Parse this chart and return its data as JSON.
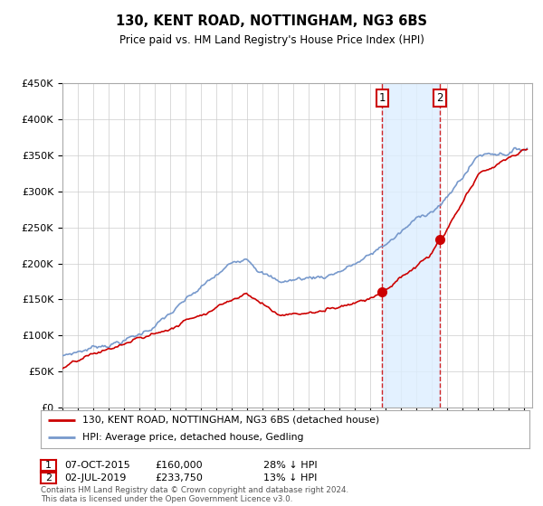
{
  "title": "130, KENT ROAD, NOTTINGHAM, NG3 6BS",
  "subtitle": "Price paid vs. HM Land Registry's House Price Index (HPI)",
  "legend_line1": "130, KENT ROAD, NOTTINGHAM, NG3 6BS (detached house)",
  "legend_line2": "HPI: Average price, detached house, Gedling",
  "transaction1_date": "07-OCT-2015",
  "transaction1_price": "£160,000",
  "transaction1_hpi": "28% ↓ HPI",
  "transaction1_year": 2015.77,
  "transaction1_value": 160000,
  "transaction2_date": "02-JUL-2019",
  "transaction2_price": "£233,750",
  "transaction2_hpi": "13% ↓ HPI",
  "transaction2_year": 2019.5,
  "transaction2_value": 233750,
  "ylim": [
    0,
    450000
  ],
  "xlim_start": 1995,
  "xlim_end": 2025.5,
  "background_color": "#ffffff",
  "plot_bg_color": "#ffffff",
  "grid_color": "#cccccc",
  "hpi_line_color": "#7799cc",
  "price_line_color": "#cc0000",
  "shade_color": "#ddeeff",
  "vline_color": "#cc0000",
  "footnote": "Contains HM Land Registry data © Crown copyright and database right 2024.\nThis data is licensed under the Open Government Licence v3.0."
}
